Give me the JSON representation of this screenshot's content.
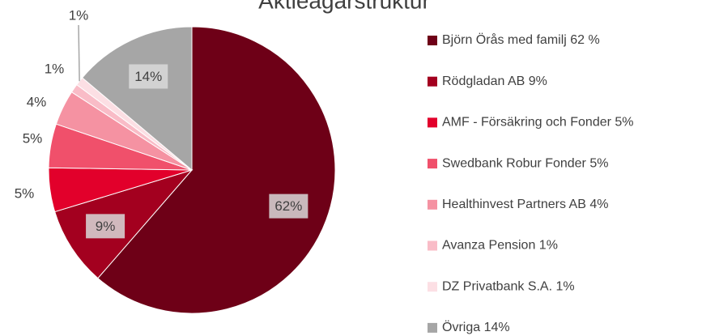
{
  "chart_data": {
    "type": "pie",
    "title": "Aktieägarstruktur",
    "categories": [
      "Björn Örås med familj 62 %",
      "Rödgladan AB 9%",
      "AMF - Försäkring och Fonder 5%",
      "Swedbank Robur Fonder 5%",
      "Healthinvest Partners AB 4%",
      "Avanza Pension 1%",
      "DZ Privatbank S.A. 1%",
      "Övriga 14%"
    ],
    "values": [
      62,
      9,
      5,
      5,
      4,
      1,
      1,
      14
    ],
    "value_labels": [
      "62%",
      "9%",
      "5%",
      "5%",
      "4%",
      "1%",
      "1%",
      "14%"
    ],
    "colors": [
      "#6e0017",
      "#a3001f",
      "#e2002b",
      "#f0506b",
      "#f592a2",
      "#f9bcc7",
      "#fcdfe4",
      "#a6a6a6"
    ]
  }
}
